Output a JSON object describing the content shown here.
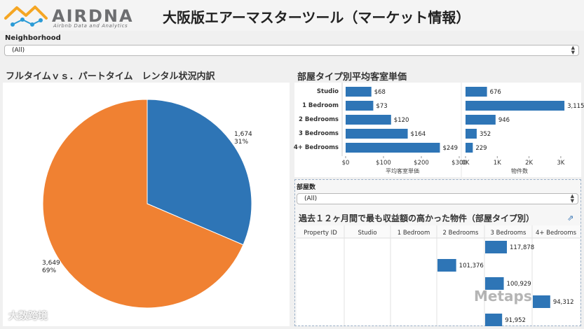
{
  "header": {
    "logo_word": "AIRDNA",
    "logo_tagline": "Airbnb Data and Analytics",
    "title": "大阪版エアーマスターツール（マーケット情報）",
    "colors": {
      "house_orange": "#f5a623",
      "node_blue": "#2b9bd6"
    }
  },
  "filters": {
    "neighborhood_label": "Neighborhood",
    "neighborhood_value": "(All)",
    "rooms_label": "部屋数",
    "rooms_value": "(All)"
  },
  "pie_section": {
    "title": "フルタイムｖｓ．パートタイム　レンタル状況内訳"
  },
  "bar_section": {
    "title": "部屋タイプ別平均客室単価"
  },
  "table_section": {
    "title": "過去１２ヶ月間で最も収益額の高かった物件（部屋タイプ別）",
    "link_icon": "external-link-icon",
    "headers": [
      "Property ID",
      "Studio",
      "1 Bedroom",
      "2 Bedrooms",
      "3 Bedrooms",
      "4+ Bedrooms"
    ]
  },
  "watermarks": {
    "left": "大数跨境",
    "right": "Metaps"
  },
  "chart_data": [
    {
      "type": "pie",
      "slices": [
        {
          "count_label": "1,674",
          "value": 1674,
          "pct_label": "31%",
          "color": "#2e75b6"
        },
        {
          "count_label": "3,649",
          "value": 3649,
          "pct_label": "69%",
          "color": "#f08132"
        }
      ]
    },
    {
      "type": "bar",
      "orientation": "horizontal",
      "categories": [
        "Studio",
        "1 Bedroom",
        "2 Bedrooms",
        "3 Bedrooms",
        "4+ Bedrooms"
      ],
      "values": [
        68,
        73,
        120,
        164,
        249
      ],
      "value_labels": [
        "$68",
        "$73",
        "$120",
        "$164",
        "$249"
      ],
      "xlabel": "平均客室単価",
      "xticks": [
        "$0",
        "$100",
        "$200",
        "$300"
      ],
      "xlim": [
        0,
        300
      ],
      "color": "#2e75b6"
    },
    {
      "type": "bar",
      "orientation": "horizontal",
      "categories": [
        "Studio",
        "1 Bedroom",
        "2 Bedrooms",
        "3 Bedrooms",
        "4+ Bedrooms"
      ],
      "values": [
        676,
        3115,
        946,
        352,
        229
      ],
      "value_labels": [
        "676",
        "3,115",
        "946",
        "352",
        "229"
      ],
      "xlabel": "物件数",
      "xticks": [
        "0K",
        "1K",
        "2K",
        "3K"
      ],
      "xlim": [
        0,
        3400
      ],
      "color": "#2e75b6"
    },
    {
      "type": "bar",
      "orientation": "horizontal",
      "layout": "table-cells",
      "rows": [
        {
          "column": "3 Bedrooms",
          "value": 117878,
          "label": "117,878"
        },
        {
          "column": "2 Bedrooms",
          "value": 101376,
          "label": "101,376"
        },
        {
          "column": "3 Bedrooms",
          "value": 100929,
          "label": "100,929"
        },
        {
          "column": "4+ Bedrooms",
          "value": 94312,
          "label": "94,312"
        },
        {
          "column": "3 Bedrooms",
          "value": 91952,
          "label": "91,952"
        }
      ],
      "color": "#2e75b6"
    }
  ]
}
